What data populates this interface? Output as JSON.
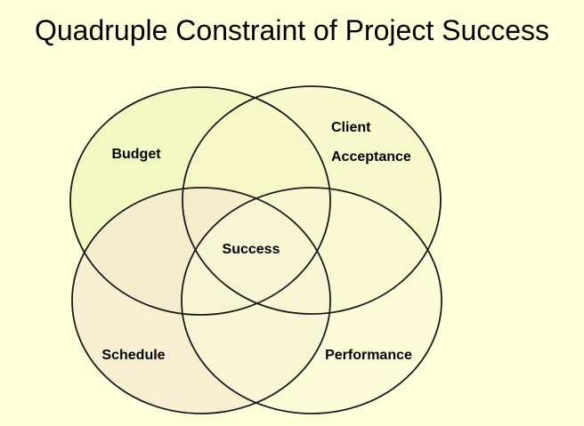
{
  "title": "Quadruple Constraint of Project Success",
  "diagram": {
    "sets": [
      {
        "id": "budget",
        "label_lines": [
          "Budget"
        ],
        "fill": "#ecf5b8"
      },
      {
        "id": "client-acceptance",
        "label_lines": [
          "Client",
          "Acceptance"
        ],
        "fill": "#f8f5c8"
      },
      {
        "id": "schedule",
        "label_lines": [
          "Schedule"
        ],
        "fill": "#f6ead0"
      },
      {
        "id": "performance",
        "label_lines": [
          "Performance"
        ],
        "fill": "#fafad8"
      }
    ],
    "center_label": "Success",
    "colors": {
      "background": "#ffffd9",
      "outline": "#1a1a1a",
      "text": "#000000"
    }
  }
}
